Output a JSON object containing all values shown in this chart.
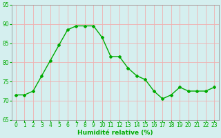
{
  "x_values": [
    0,
    1,
    2,
    3,
    4,
    5,
    6,
    7,
    8,
    9,
    10,
    11,
    12,
    13,
    14,
    15,
    16,
    17,
    18,
    19,
    20,
    21,
    22,
    23
  ],
  "y_values": [
    71.5,
    71.5,
    72.5,
    76.5,
    80.5,
    84.5,
    88.5,
    89.5,
    89.5,
    89.5,
    86.5,
    81.5,
    81.5,
    78.5,
    76.5,
    75.5,
    72.5,
    70.5,
    71.5,
    73.5,
    72.5,
    72.5,
    72.5,
    73.5
  ],
  "line_color": "#00aa00",
  "marker": "D",
  "marker_size": 2,
  "xlabel": "Humidité relative (%)",
  "ylim": [
    65,
    95
  ],
  "xlim": [
    -0.5,
    23.5
  ],
  "yticks": [
    65,
    70,
    75,
    80,
    85,
    90,
    95
  ],
  "xticks": [
    0,
    1,
    2,
    3,
    4,
    5,
    6,
    7,
    8,
    9,
    10,
    11,
    12,
    13,
    14,
    15,
    16,
    17,
    18,
    19,
    20,
    21,
    22,
    23
  ],
  "bg_color": "#d5efef",
  "grid_color": "#f0b0b0",
  "tick_color": "#00aa00",
  "label_color": "#00aa00",
  "spine_color": "#888888",
  "font_size_xlabel": 6.5,
  "font_size_tick": 5.5,
  "line_width": 1.0
}
